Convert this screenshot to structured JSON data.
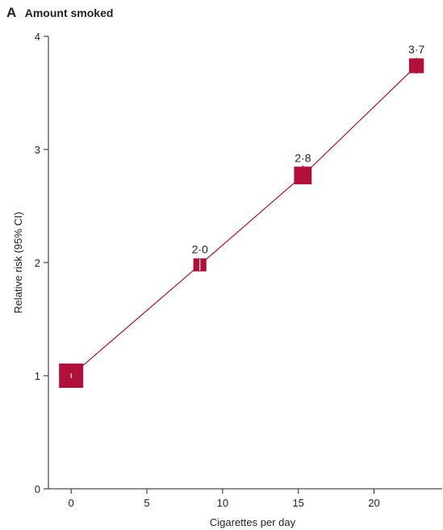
{
  "panel": {
    "letter": "A",
    "title": "Amount smoked"
  },
  "colors": {
    "marker": "#b0103a",
    "line": "#b0103a",
    "axis": "#231f20",
    "ci": "#ffffff"
  },
  "chart_data": {
    "type": "line",
    "title": "Amount smoked",
    "xlabel": "Cigarettes per day",
    "ylabel": "Relative risk (95% CI)",
    "xlim": [
      -1.5,
      24.5
    ],
    "ylim": [
      0,
      4
    ],
    "xticks": [
      0,
      5,
      10,
      15,
      20
    ],
    "xtick_labels": [
      "0",
      "5",
      "10",
      "15",
      "20"
    ],
    "yticks": [
      0,
      1,
      2,
      3,
      4
    ],
    "ytick_labels": [
      "0",
      "1",
      "2",
      "3",
      "4"
    ],
    "grid": false,
    "series": [
      {
        "x": [
          0,
          8.5,
          15.3,
          22.8
        ],
        "y": [
          1.0,
          1.98,
          2.77,
          3.74
        ],
        "ci_low": [
          0.98,
          1.93,
          2.7,
          3.67
        ],
        "ci_high": [
          1.02,
          2.03,
          2.86,
          3.81
        ],
        "marker_weight": [
          1.0,
          0.37,
          0.63,
          0.47
        ],
        "data_labels": [
          "",
          "2·0",
          "2·8",
          "3·7"
        ]
      }
    ]
  }
}
